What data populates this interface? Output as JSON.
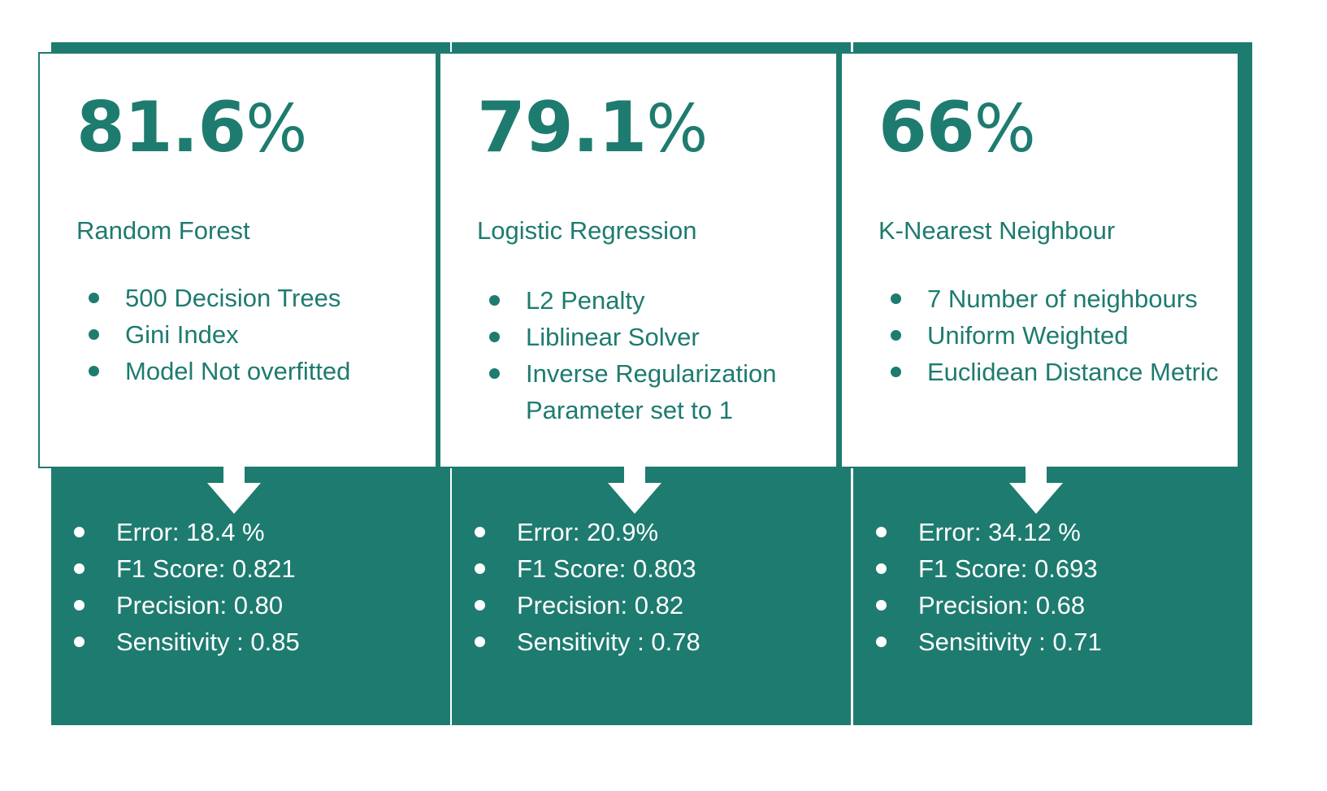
{
  "colors": {
    "primary": "#1e7b6f",
    "text_light": "#ffffff"
  },
  "cards": [
    {
      "accuracy_value": "81.6",
      "accuracy_unit": "%",
      "model": "Random Forest",
      "params": [
        "500 Decision Trees",
        "Gini Index",
        "Model Not overfitted"
      ],
      "metrics": [
        "Error: 18.4 %",
        "F1 Score: 0.821",
        "Precision: 0.80",
        "Sensitivity : 0.85"
      ]
    },
    {
      "accuracy_value": "79.1",
      "accuracy_unit": "%",
      "model": "Logistic Regression",
      "params": [
        "L2 Penalty",
        "Liblinear Solver",
        "Inverse Regularization Parameter set to 1"
      ],
      "metrics": [
        "Error: 20.9%",
        "F1 Score: 0.803",
        "Precision: 0.82",
        "Sensitivity : 0.78"
      ]
    },
    {
      "accuracy_value": "66",
      "accuracy_unit": "%",
      "model": "K-Nearest Neighbour",
      "params": [
        "7 Number of neighbours",
        "Uniform Weighted",
        "Euclidean Distance Metric"
      ],
      "metrics": [
        "Error: 34.12 %",
        "F1 Score: 0.693",
        "Precision: 0.68",
        "Sensitivity : 0.71"
      ]
    }
  ]
}
